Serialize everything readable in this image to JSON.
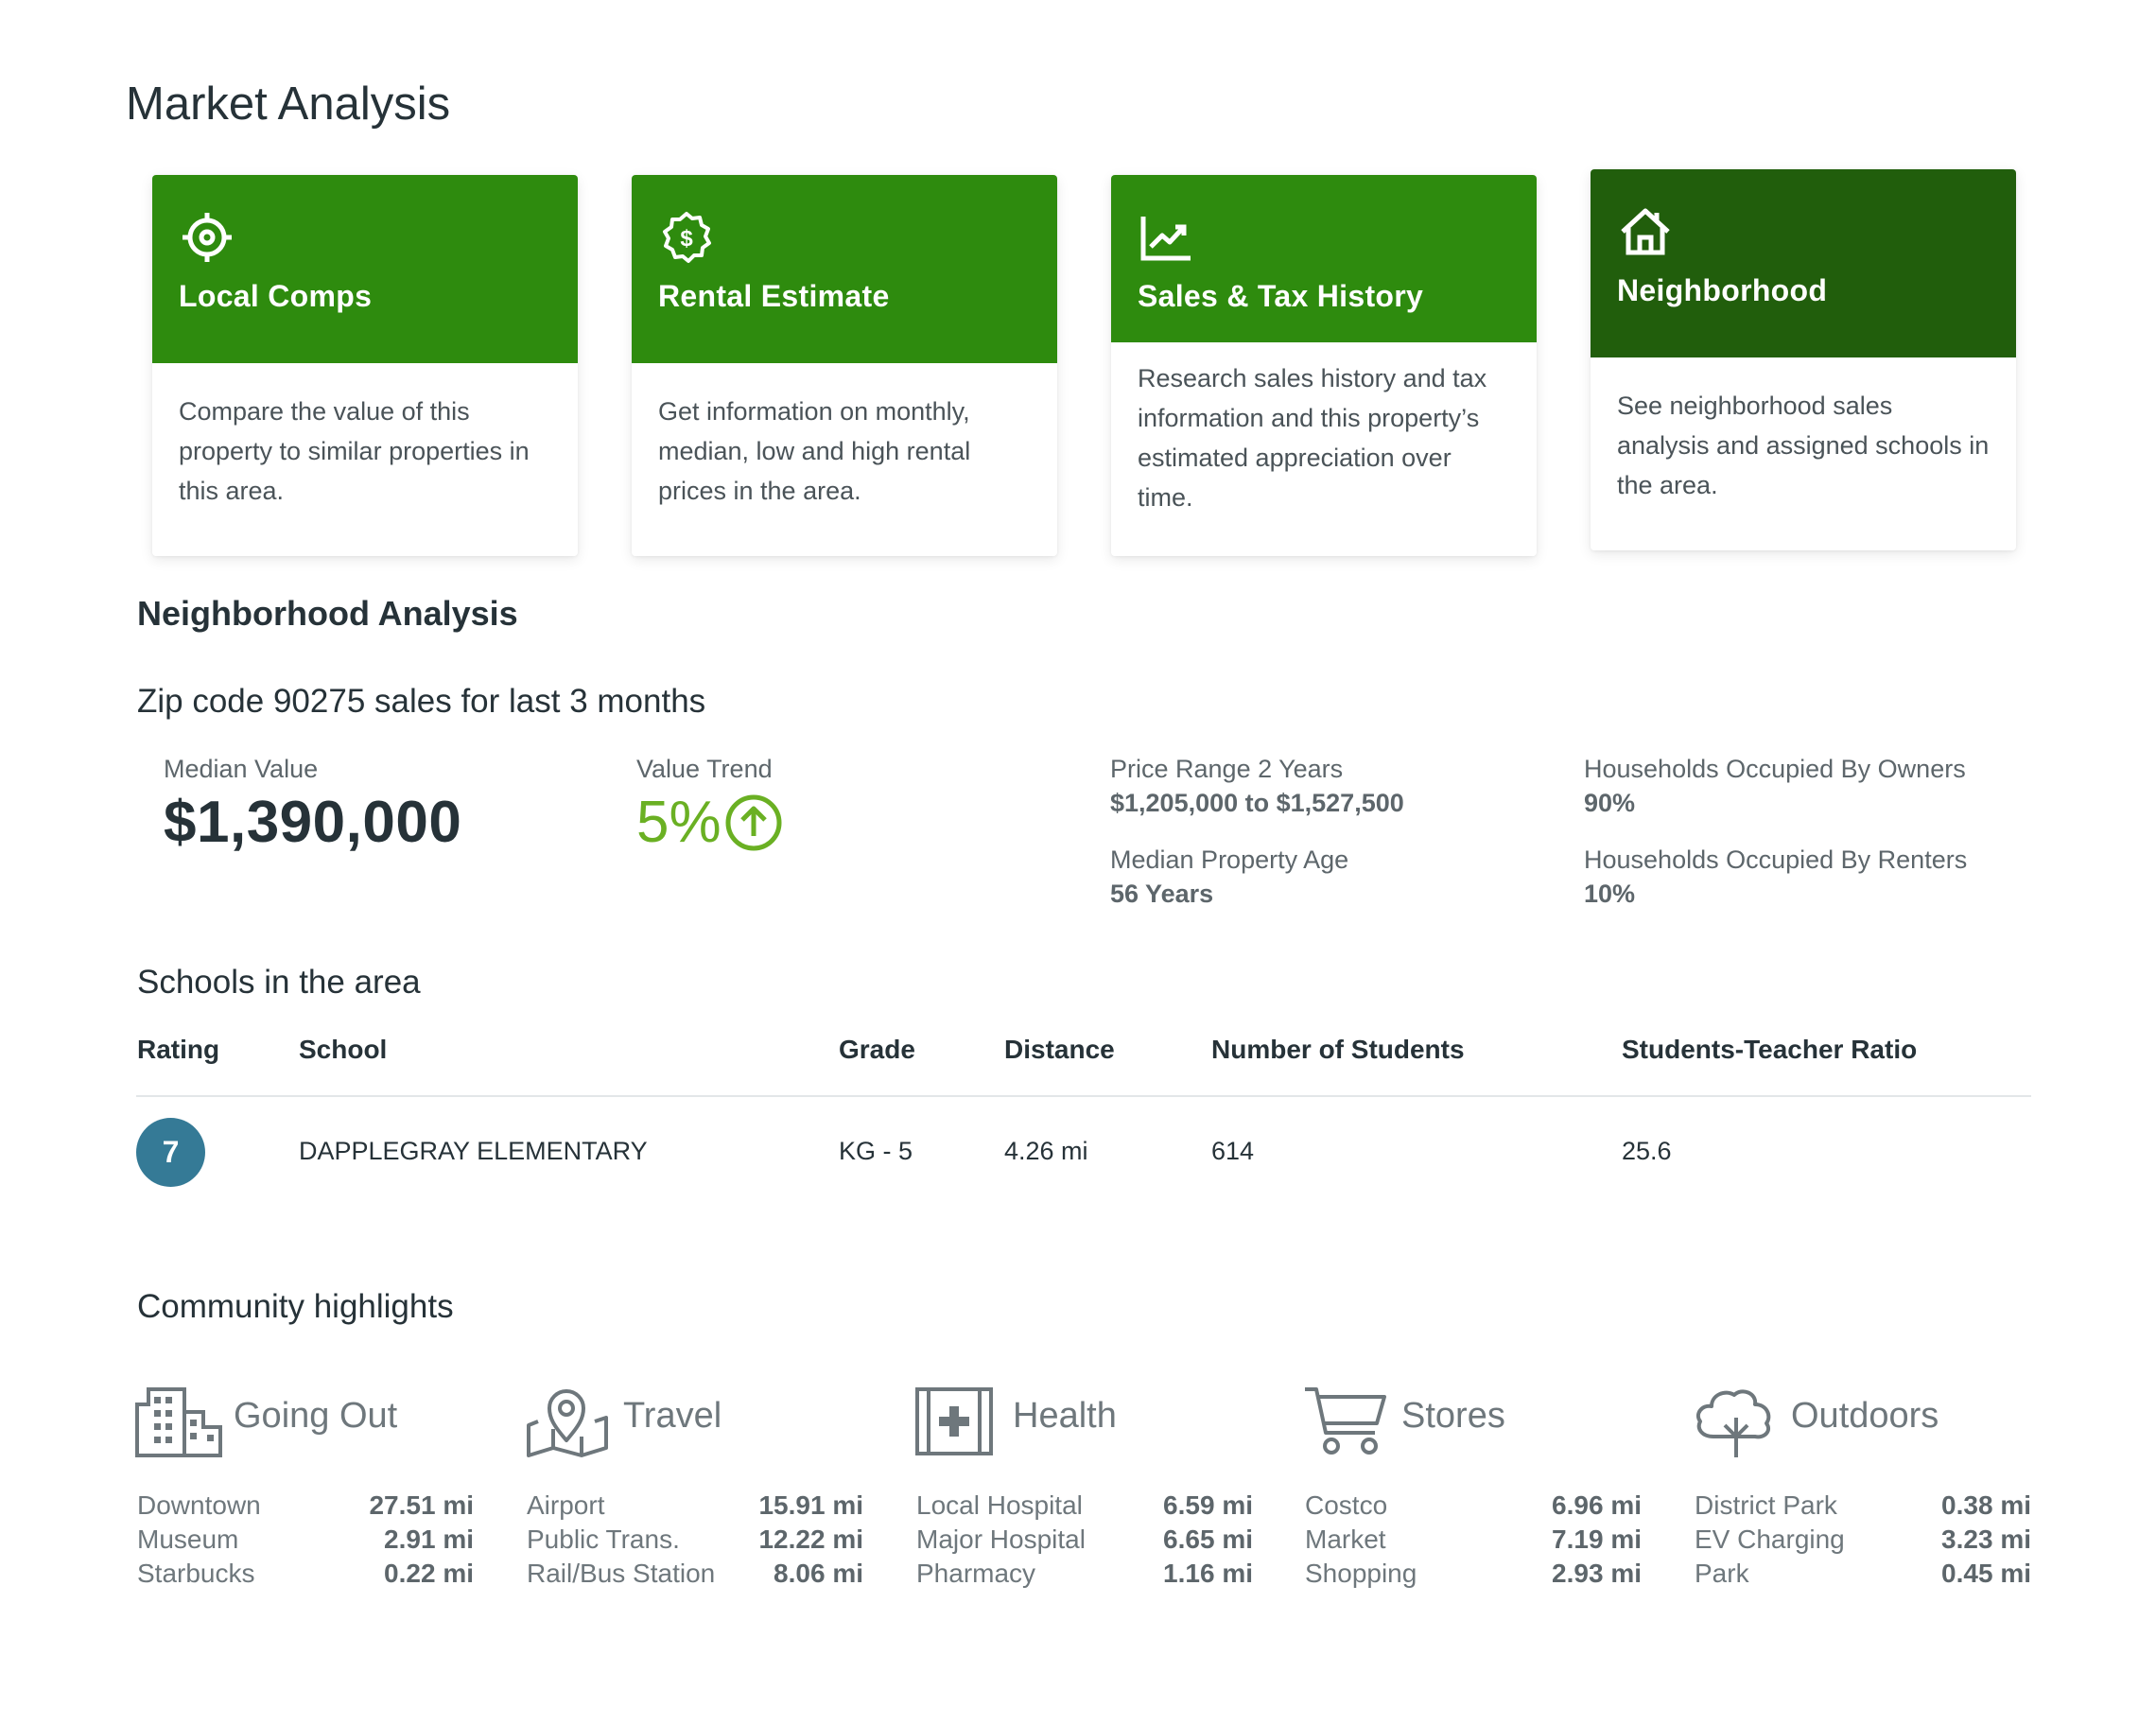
{
  "page_title": "Market Analysis",
  "cards": [
    {
      "title": "Local Comps",
      "icon": "target-icon",
      "description": "Compare the value of this property to similar properties in this area."
    },
    {
      "title": "Rental Estimate",
      "icon": "dollar-badge-icon",
      "description": "Get information on monthly, median, low and high rental prices in the area."
    },
    {
      "title": "Sales & Tax History",
      "icon": "chart-trend-icon",
      "description": "Research sales history and tax information and this property’s estimated appreciation over time."
    },
    {
      "title": "Neighborhood",
      "icon": "house-icon",
      "description": "See neighborhood sales analysis and assigned schools in the area.",
      "active": true
    }
  ],
  "neighborhood": {
    "heading": "Neighborhood Analysis",
    "zip_heading": "Zip code 90275 sales for last 3 months",
    "median_label": "Median Value",
    "median_value": "$1,390,000",
    "trend_label": "Value Trend",
    "trend_value": "5%",
    "trend_icon": "arrow-up-circle-icon",
    "price_range_label": "Price Range 2 Years",
    "price_range_value": "$1,205,000 to $1,527,500",
    "property_age_label": "Median Property Age",
    "property_age_value": "56 Years",
    "owners_label": "Households Occupied By Owners",
    "owners_value": "90%",
    "renters_label": "Households Occupied By Renters",
    "renters_value": "10%"
  },
  "schools": {
    "heading": "Schools in the area",
    "columns": [
      "Rating",
      "School",
      "Grade",
      "Distance",
      "Number of Students",
      "Students-Teacher Ratio"
    ],
    "rows": [
      {
        "rating": "7",
        "school": "DAPPLEGRAY ELEMENTARY",
        "grade": "KG - 5",
        "distance": "4.26 mi",
        "students": "614",
        "ratio": "25.6"
      }
    ]
  },
  "community": {
    "heading": "Community highlights",
    "categories": [
      {
        "title": "Going Out",
        "icon": "buildings-icon",
        "items": [
          {
            "name": "Downtown",
            "distance": "27.51 mi"
          },
          {
            "name": "Museum",
            "distance": "2.91 mi"
          },
          {
            "name": "Starbucks",
            "distance": "0.22 mi"
          }
        ]
      },
      {
        "title": "Travel",
        "icon": "map-pin-icon",
        "items": [
          {
            "name": "Airport",
            "distance": "15.91 mi"
          },
          {
            "name": "Public Trans.",
            "distance": "12.22 mi"
          },
          {
            "name": "Rail/Bus Station",
            "distance": "8.06 mi"
          }
        ]
      },
      {
        "title": "Health",
        "icon": "medical-kit-icon",
        "items": [
          {
            "name": "Local Hospital",
            "distance": "6.59 mi"
          },
          {
            "name": "Major Hospital",
            "distance": "6.65 mi"
          },
          {
            "name": "Pharmacy",
            "distance": "1.16 mi"
          }
        ]
      },
      {
        "title": "Stores",
        "icon": "shopping-cart-icon",
        "items": [
          {
            "name": "Costco",
            "distance": "6.96 mi"
          },
          {
            "name": "Market",
            "distance": "7.19 mi"
          },
          {
            "name": "Shopping",
            "distance": "2.93 mi"
          }
        ]
      },
      {
        "title": "Outdoors",
        "icon": "tree-icon",
        "items": [
          {
            "name": "District Park",
            "distance": "0.38 mi"
          },
          {
            "name": "EV Charging",
            "distance": "3.23 mi"
          },
          {
            "name": "Park",
            "distance": "0.45 mi"
          }
        ]
      }
    ]
  },
  "colors": {
    "card_green": "#2e8b0e",
    "card_green_active": "#215e0c",
    "trend_green": "#6ab023",
    "rating_blue": "#357a96"
  }
}
